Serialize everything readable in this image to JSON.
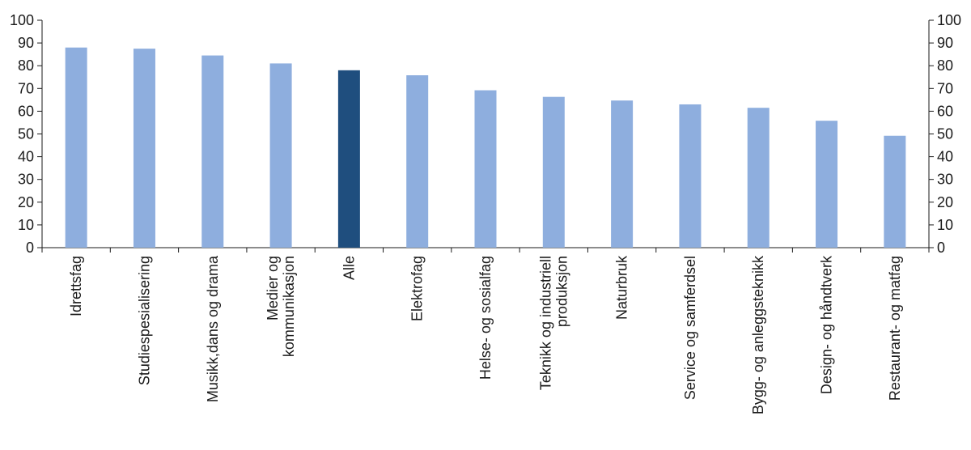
{
  "chart_data": {
    "type": "bar",
    "title": "",
    "xlabel": "",
    "ylabel": "",
    "ylim": [
      0,
      100
    ],
    "yticks": [
      0,
      10,
      20,
      30,
      40,
      50,
      60,
      70,
      80,
      90,
      100
    ],
    "secondary_y_axis": true,
    "grid": false,
    "legend": "none",
    "categories": [
      [
        "Idrettsfag"
      ],
      [
        "Studiespesialisering"
      ],
      [
        "Musikk,dans og drama"
      ],
      [
        "Medier og",
        "kommunikasjon"
      ],
      [
        "Alle"
      ],
      [
        "Elektrofag"
      ],
      [
        "Helse- og sosialfag"
      ],
      [
        "Teknikk og industriell",
        "produksjon"
      ],
      [
        "Naturbruk"
      ],
      [
        "Service og samferdsel"
      ],
      [
        "Bygg- og anleggsteknikk"
      ],
      [
        "Design- og håndtverk"
      ],
      [
        "Restaurant- og matfag"
      ]
    ],
    "values": [
      88,
      87.5,
      84.5,
      81,
      78,
      75.8,
      69.2,
      66.3,
      64.7,
      63,
      61.5,
      55.8,
      49.2
    ],
    "highlight_index": 4,
    "colors": {
      "bar": "#8eaede",
      "highlight": "#1f4e7e",
      "axis": "#1a1a1a"
    }
  }
}
